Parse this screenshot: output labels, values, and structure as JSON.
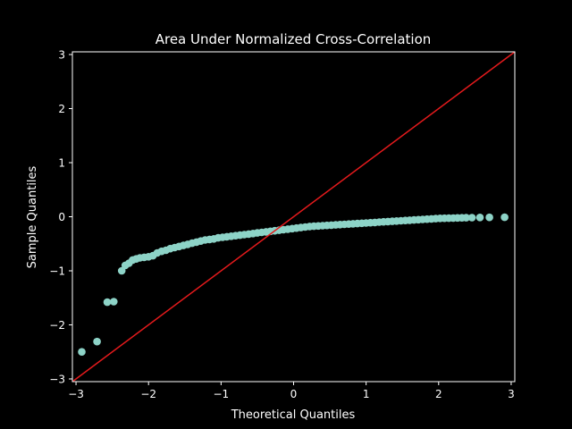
{
  "colors": {
    "background": "#000000",
    "foreground": "#ffffff",
    "points": "#8dd3c7",
    "reference_line": "#e41a1c"
  },
  "chart_data": {
    "type": "scatter",
    "title": "Area Under Normalized Cross-Correlation",
    "xlabel": "Theoretical Quantiles",
    "ylabel": "Sample Quantiles",
    "xlim": [
      -3.05,
      3.05
    ],
    "ylim": [
      -3.05,
      3.05
    ],
    "xticks": [
      -3,
      -2,
      -1,
      0,
      1,
      2,
      3
    ],
    "yticks": [
      -3,
      -2,
      -1,
      0,
      1,
      2,
      3
    ],
    "grid": false,
    "reference_line": {
      "x": [
        -3.05,
        3.05
      ],
      "y": [
        -3.05,
        3.05
      ]
    },
    "series": [
      {
        "x": [
          -2.92,
          -2.71,
          -2.57,
          -2.48,
          -2.37,
          -2.32,
          -2.27,
          -2.22,
          -2.17,
          -2.12,
          -2.06,
          -2.0,
          -1.94,
          -1.88,
          -1.82,
          -1.76,
          -1.7,
          -1.64,
          -1.58,
          -1.52,
          -1.46,
          -1.4,
          -1.34,
          -1.28,
          -1.22,
          -1.16,
          -1.1,
          -1.04,
          -0.98,
          -0.92,
          -0.86,
          -0.8,
          -0.74,
          -0.68,
          -0.62,
          -0.56,
          -0.5,
          -0.44,
          -0.38,
          -0.32,
          -0.26,
          -0.2,
          -0.14,
          -0.08,
          -0.02,
          0.04,
          0.1,
          0.16,
          0.22,
          0.28,
          0.34,
          0.4,
          0.46,
          0.52,
          0.58,
          0.64,
          0.7,
          0.76,
          0.82,
          0.88,
          0.94,
          1.0,
          1.06,
          1.12,
          1.18,
          1.24,
          1.3,
          1.36,
          1.42,
          1.48,
          1.54,
          1.6,
          1.66,
          1.72,
          1.78,
          1.84,
          1.9,
          1.96,
          2.02,
          2.08,
          2.14,
          2.2,
          2.26,
          2.32,
          2.38,
          2.46,
          2.57,
          2.7,
          2.91
        ],
        "y": [
          -2.5,
          -2.31,
          -1.58,
          -1.57,
          -1.0,
          -0.9,
          -0.86,
          -0.8,
          -0.78,
          -0.76,
          -0.75,
          -0.74,
          -0.72,
          -0.67,
          -0.64,
          -0.62,
          -0.59,
          -0.57,
          -0.55,
          -0.53,
          -0.51,
          -0.49,
          -0.47,
          -0.45,
          -0.43,
          -0.42,
          -0.41,
          -0.39,
          -0.38,
          -0.37,
          -0.36,
          -0.35,
          -0.34,
          -0.33,
          -0.32,
          -0.31,
          -0.3,
          -0.29,
          -0.28,
          -0.27,
          -0.26,
          -0.25,
          -0.24,
          -0.23,
          -0.22,
          -0.21,
          -0.2,
          -0.19,
          -0.18,
          -0.175,
          -0.17,
          -0.165,
          -0.16,
          -0.155,
          -0.15,
          -0.145,
          -0.14,
          -0.135,
          -0.13,
          -0.125,
          -0.12,
          -0.115,
          -0.11,
          -0.105,
          -0.1,
          -0.095,
          -0.09,
          -0.085,
          -0.08,
          -0.075,
          -0.07,
          -0.065,
          -0.06,
          -0.055,
          -0.05,
          -0.045,
          -0.04,
          -0.035,
          -0.03,
          -0.028,
          -0.026,
          -0.024,
          -0.022,
          -0.02,
          -0.018,
          -0.016,
          -0.014,
          -0.012,
          -0.01
        ]
      }
    ]
  }
}
